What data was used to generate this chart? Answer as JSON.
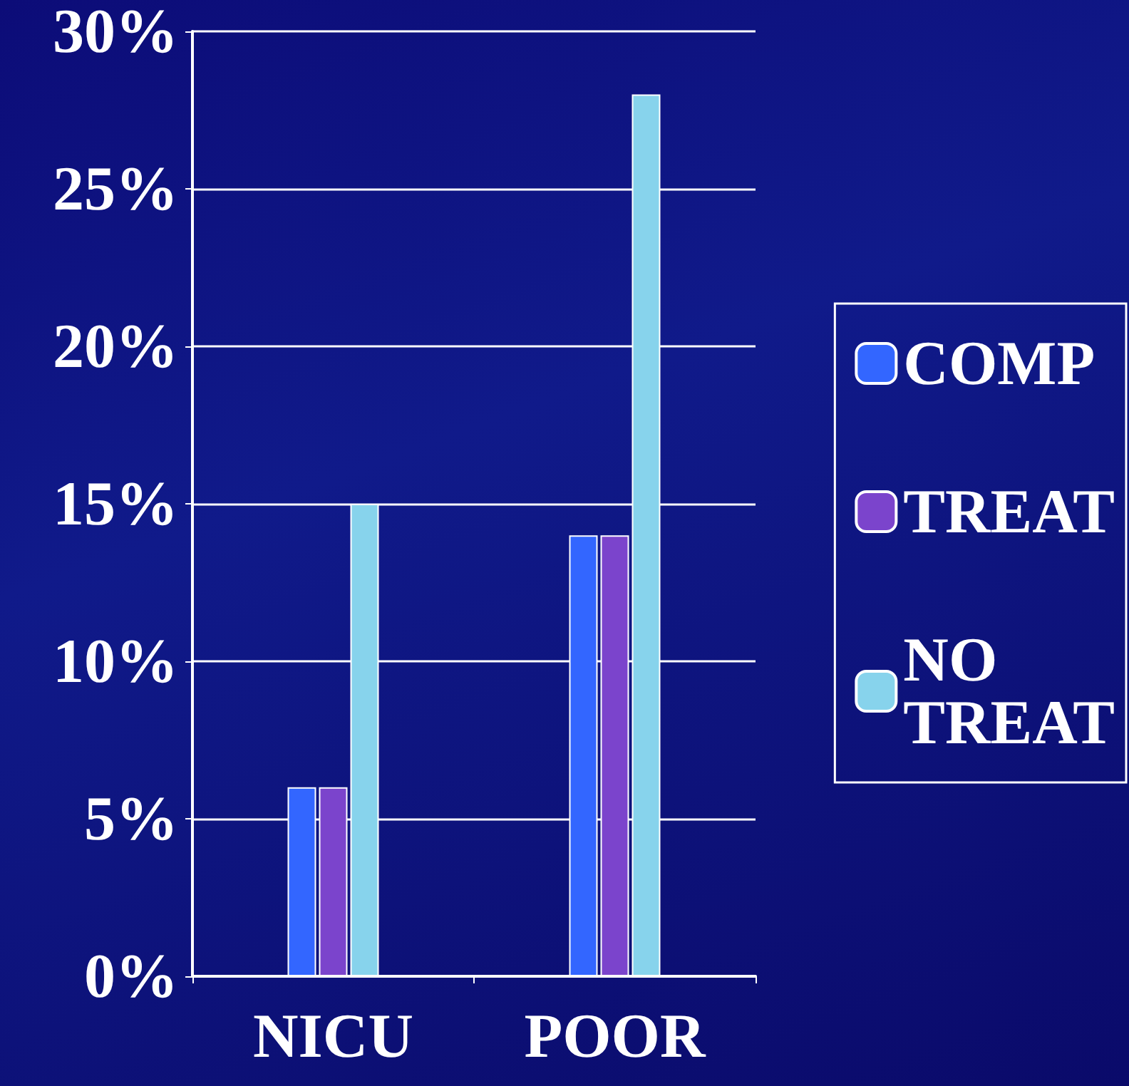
{
  "chart_data": {
    "type": "bar",
    "categories": [
      "NICU",
      "POOR"
    ],
    "series": [
      {
        "name": "COMP",
        "color": "#3366ff",
        "values": [
          6,
          14
        ]
      },
      {
        "name": "TREAT",
        "color": "#7b44cc",
        "values": [
          6,
          14
        ]
      },
      {
        "name": "NO TREAT",
        "color": "#87d3ec",
        "values": [
          15,
          28
        ]
      }
    ],
    "ylim": [
      0,
      30
    ],
    "yticks": [
      {
        "value": 0,
        "label": "0%"
      },
      {
        "value": 5,
        "label": "5%"
      },
      {
        "value": 10,
        "label": "10%"
      },
      {
        "value": 15,
        "label": "15%"
      },
      {
        "value": 20,
        "label": "20%"
      },
      {
        "value": 25,
        "label": "25%"
      },
      {
        "value": 30,
        "label": "30%"
      }
    ],
    "grid": "y",
    "legend": "right"
  }
}
